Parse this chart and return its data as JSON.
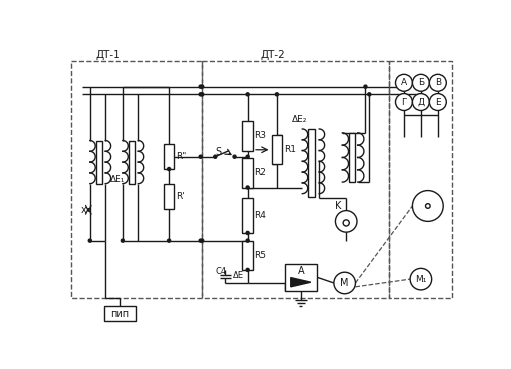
{
  "bg_color": "#ffffff",
  "line_color": "#1a1a1a",
  "dash_color": "#555555",
  "fig_width": 5.11,
  "fig_height": 3.69,
  "dpi": 100,
  "labels": {
    "DT1": "ДТ-1",
    "DT2": "ДТ-2",
    "PIP": "пип",
    "Rpp": "R\"",
    "Rp": "R'",
    "dE1": "ΔE₁",
    "dE2": "ΔE₂",
    "dE": "ΔE",
    "C4": "C4",
    "R1": "R1",
    "R2": "R2",
    "R3": "R3",
    "R4": "R4",
    "R5": "R5",
    "S": "S",
    "K": "K",
    "Aamp": "A",
    "A_c": "А",
    "B_c": "Б",
    "V_c": "В",
    "G_c": "Г",
    "D_c": "Д",
    "E_c": "Е",
    "M": "М",
    "M1": "М₁",
    "X": "x"
  }
}
